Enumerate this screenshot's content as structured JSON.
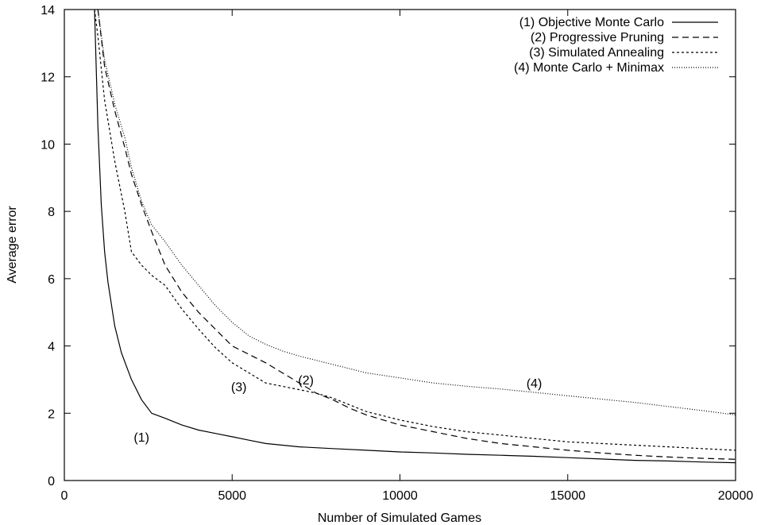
{
  "chart_data": {
    "type": "line",
    "title": "",
    "xlabel": "Number of Simulated Games",
    "ylabel": "Average error",
    "xlim": [
      0,
      20000
    ],
    "ylim": [
      0,
      14
    ],
    "xticks": [
      0,
      5000,
      10000,
      15000,
      20000
    ],
    "yticks": [
      0,
      2,
      4,
      6,
      8,
      10,
      12,
      14
    ],
    "xtick_labels": [
      "0",
      "5000",
      "10000",
      "15000",
      "20000"
    ],
    "ytick_labels": [
      "0",
      "2",
      "4",
      "6",
      "8",
      "10",
      "12",
      "14"
    ],
    "grid": false,
    "legend_position": "top-right",
    "series": [
      {
        "name": "(1) Objective Monte Carlo",
        "dash": "solid",
        "x": [
          900,
          1000,
          1100,
          1200,
          1300,
          1500,
          1700,
          2000,
          2300,
          2600,
          3000,
          3500,
          4000,
          4500,
          5000,
          5500,
          6000,
          7000,
          8000,
          9000,
          10000,
          11000,
          12000,
          13000,
          14000,
          15000,
          16000,
          17000,
          18000,
          19000,
          20000
        ],
        "y": [
          14,
          10.5,
          8.2,
          6.8,
          5.9,
          4.6,
          3.8,
          3.0,
          2.4,
          2.0,
          1.85,
          1.65,
          1.5,
          1.4,
          1.3,
          1.2,
          1.1,
          1.0,
          0.95,
          0.9,
          0.85,
          0.82,
          0.78,
          0.75,
          0.72,
          0.68,
          0.64,
          0.6,
          0.58,
          0.55,
          0.53
        ]
      },
      {
        "name": "(2)   Progressive Pruning",
        "dash": "8,5",
        "x": [
          1000,
          1200,
          1500,
          1800,
          2000,
          2300,
          2600,
          3000,
          3500,
          4000,
          4500,
          5000,
          5500,
          6000,
          6500,
          7000,
          7500,
          8000,
          8500,
          9000,
          10000,
          11000,
          12000,
          13000,
          14000,
          15000,
          16000,
          17000,
          18000,
          19000,
          20000
        ],
        "y": [
          14,
          12.3,
          11.0,
          9.9,
          9.1,
          8.2,
          7.4,
          6.4,
          5.6,
          5.0,
          4.5,
          4.0,
          3.75,
          3.5,
          3.2,
          2.9,
          2.6,
          2.4,
          2.15,
          1.95,
          1.65,
          1.45,
          1.25,
          1.1,
          1.0,
          0.9,
          0.82,
          0.75,
          0.7,
          0.66,
          0.63
        ]
      },
      {
        "name": "(3)    Simulated Annealing",
        "dash": "3,3",
        "x": [
          900,
          1000,
          1200,
          1500,
          1800,
          2000,
          2300,
          2600,
          3000,
          3500,
          4000,
          4500,
          5000,
          5500,
          6000,
          6500,
          7000,
          7500,
          8000,
          8500,
          9000,
          10000,
          11000,
          12000,
          13000,
          14000,
          15000,
          16000,
          17000,
          18000,
          19000,
          20000
        ],
        "y": [
          14,
          13.2,
          11.3,
          9.5,
          8.0,
          6.8,
          6.4,
          6.1,
          5.8,
          5.1,
          4.5,
          3.95,
          3.5,
          3.2,
          2.9,
          2.8,
          2.7,
          2.6,
          2.45,
          2.25,
          2.05,
          1.8,
          1.6,
          1.45,
          1.35,
          1.25,
          1.15,
          1.1,
          1.05,
          1.0,
          0.95,
          0.9
        ]
      },
      {
        "name": "(4) Monte Carlo + Minimax",
        "dash": "1,2",
        "x": [
          1000,
          1200,
          1500,
          1800,
          2000,
          2300,
          2600,
          3000,
          3500,
          4000,
          4500,
          5000,
          5500,
          6000,
          6500,
          7000,
          8000,
          9000,
          10000,
          11000,
          12000,
          13000,
          14000,
          15000,
          16000,
          17000,
          18000,
          19000,
          20000
        ],
        "y": [
          14,
          12.5,
          11.2,
          10.2,
          9.3,
          8.3,
          7.6,
          7.1,
          6.4,
          5.8,
          5.2,
          4.7,
          4.3,
          4.05,
          3.85,
          3.7,
          3.45,
          3.2,
          3.05,
          2.9,
          2.8,
          2.72,
          2.62,
          2.52,
          2.42,
          2.32,
          2.2,
          2.08,
          1.95
        ]
      }
    ],
    "annotations": [
      {
        "text": "(1)",
        "x": 2300,
        "y": 1.3
      },
      {
        "text": "(2)",
        "x": 7200,
        "y": 3.0
      },
      {
        "text": "(3)",
        "x": 5200,
        "y": 2.8
      },
      {
        "text": "(4)",
        "x": 14000,
        "y": 2.9
      }
    ]
  }
}
